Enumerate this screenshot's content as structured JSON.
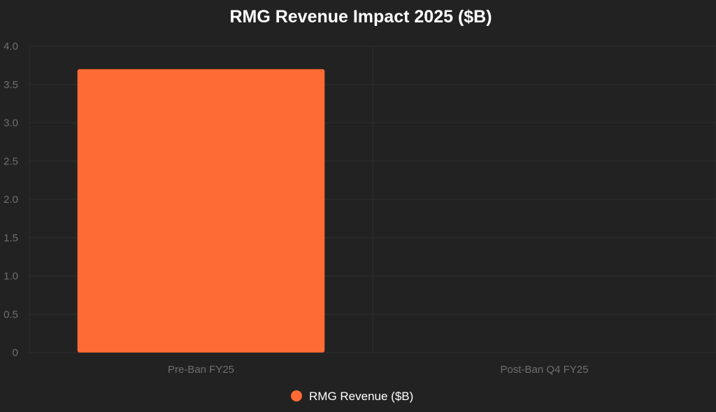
{
  "chart_data": {
    "type": "bar",
    "title": "RMG Revenue Impact 2025 ($B)",
    "categories": [
      "Pre-Ban FY25",
      "Post-Ban Q4 FY25"
    ],
    "series": [
      {
        "name": "RMG Revenue ($B)",
        "values": [
          3.7,
          0
        ],
        "color": "#ff6b35"
      }
    ],
    "xlabel": "",
    "ylabel": "",
    "ylim": [
      0,
      4.0
    ],
    "yticks": [
      "0",
      "0.5",
      "1.0",
      "1.5",
      "2.0",
      "2.5",
      "3.0",
      "3.5",
      "4.0"
    ],
    "grid": true,
    "legend_position": "bottom",
    "colors": {
      "background": "#222222",
      "grid": "#2e2e2e",
      "tick_text": "#6f6f6f",
      "title_text": "#ffffff"
    }
  }
}
